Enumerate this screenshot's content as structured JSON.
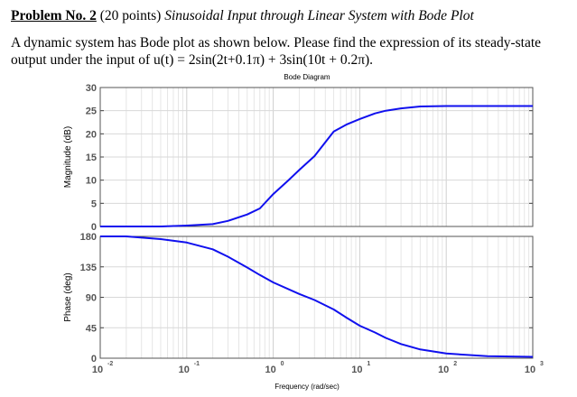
{
  "problem": {
    "number_label": "Problem No. 2",
    "points": "(20 points)",
    "title": "Sinusoidal Input through Linear System with Bode Plot",
    "text_line1": "A dynamic system has Bode plot as shown below. Please find the expression of its steady-state",
    "text_line2_prefix": "output under the input of ",
    "input_expression": "u(t) = 2sin(2t+0.1π) + 3sin(10t + 0.2π)."
  },
  "chart_data": {
    "type": "line",
    "title": "Bode Diagram",
    "xlabel": "Frequency  (rad/sec)",
    "xscale": "log",
    "xlim": [
      0.01,
      1000
    ],
    "x_ticks": [
      {
        "base": "10",
        "exp": "-2"
      },
      {
        "base": "10",
        "exp": "-1"
      },
      {
        "base": "10",
        "exp": "0"
      },
      {
        "base": "10",
        "exp": "1"
      },
      {
        "base": "10",
        "exp": "2"
      },
      {
        "base": "10",
        "exp": "3"
      }
    ],
    "grid": true,
    "line_color": "#1010ee",
    "panels": [
      {
        "name": "magnitude",
        "ylabel": "Magnitude (dB)",
        "ylim": [
          0,
          30
        ],
        "y_ticks": [
          "0",
          "5",
          "10",
          "15",
          "20",
          "25",
          "30"
        ],
        "x": [
          0.01,
          0.05,
          0.1,
          0.2,
          0.3,
          0.5,
          0.7,
          1,
          1.5,
          2,
          3,
          5,
          7,
          10,
          15,
          20,
          30,
          50,
          100,
          300,
          1000
        ],
        "y": [
          0,
          0,
          0.2,
          0.5,
          1.2,
          2.6,
          3.9,
          7,
          10,
          12.2,
          15.2,
          20.5,
          22,
          23.2,
          24.4,
          25,
          25.5,
          25.9,
          26,
          26,
          26
        ]
      },
      {
        "name": "phase",
        "ylabel": "Phase (deg)",
        "ylim": [
          0,
          180
        ],
        "y_ticks": [
          "0",
          "45",
          "90",
          "135",
          "180"
        ],
        "x": [
          0.01,
          0.02,
          0.05,
          0.1,
          0.2,
          0.3,
          0.5,
          0.7,
          1,
          2,
          3,
          5,
          7,
          10,
          15,
          20,
          30,
          50,
          100,
          300,
          1000
        ],
        "y": [
          180,
          180,
          176,
          171,
          161,
          150,
          134,
          123,
          112,
          95,
          86,
          72,
          60,
          48,
          38,
          30,
          21,
          13,
          7,
          3,
          2
        ]
      }
    ]
  }
}
